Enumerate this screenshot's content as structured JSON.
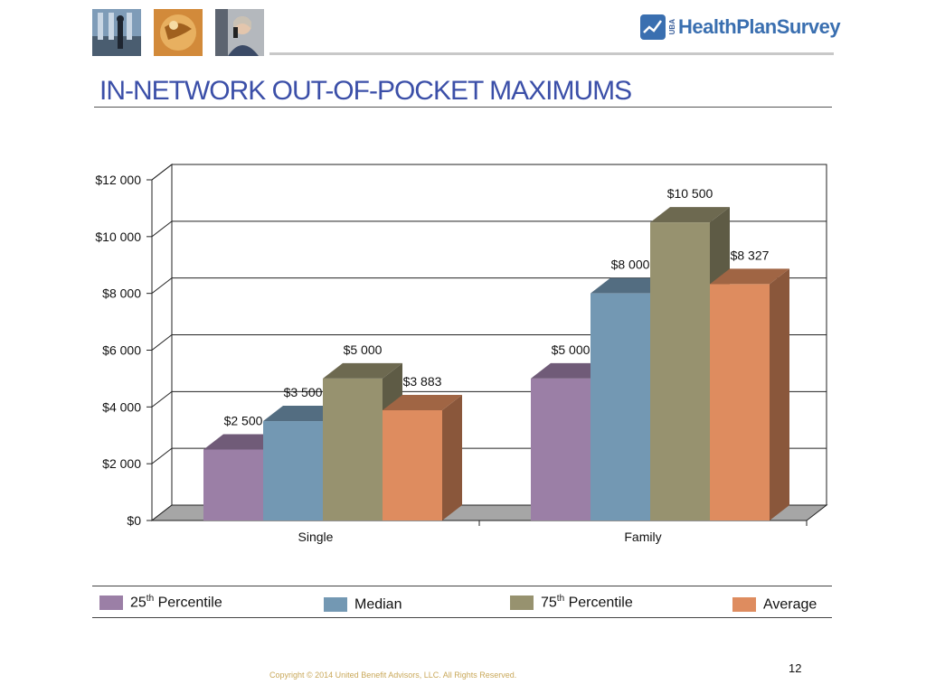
{
  "header": {
    "brand": "HealthPlanSurvey",
    "brand_prefix": "UBA",
    "title": "IN-NETWORK OUT-OF-POCKET MAXIMUMS"
  },
  "chart_data": {
    "type": "bar",
    "categories": [
      "Single",
      "Family"
    ],
    "series": [
      {
        "name": "25th Percentile",
        "values": [
          2500,
          5000
        ],
        "labels": [
          "$2 500",
          "$5 000"
        ],
        "color": "#9b7fa6"
      },
      {
        "name": "Median",
        "values": [
          3500,
          8000
        ],
        "labels": [
          "$3 500",
          "$8 000"
        ],
        "color": "#7398b3"
      },
      {
        "name": "75th Percentile",
        "values": [
          5000,
          10500
        ],
        "labels": [
          "$5 000",
          "$10 500"
        ],
        "color": "#97926f"
      },
      {
        "name": "Average",
        "values": [
          3883,
          8327
        ],
        "labels": [
          "$3 883",
          "$8 327"
        ],
        "color": "#de8c5f"
      }
    ],
    "ylim": [
      0,
      12000
    ],
    "yticks": [
      0,
      2000,
      4000,
      6000,
      8000,
      10000,
      12000
    ],
    "ytick_labels": [
      "$0",
      "$2 000",
      "$4 000",
      "$6 000",
      "$8 000",
      "$10 000",
      "$12 000"
    ],
    "grid": true,
    "three_d": true,
    "legend_placement": "bottom"
  },
  "legend": {
    "items": [
      {
        "base": "25",
        "sup": "th",
        "rest": " Percentile"
      },
      {
        "base": "Median",
        "sup": "",
        "rest": ""
      },
      {
        "base": "75",
        "sup": "th",
        "rest": " Percentile"
      },
      {
        "base": "Average",
        "sup": "",
        "rest": ""
      }
    ]
  },
  "footer": {
    "copyright": "Copyright © 2014 United Benefit Advisors, LLC. All Rights Reserved.",
    "page_number": "12"
  }
}
